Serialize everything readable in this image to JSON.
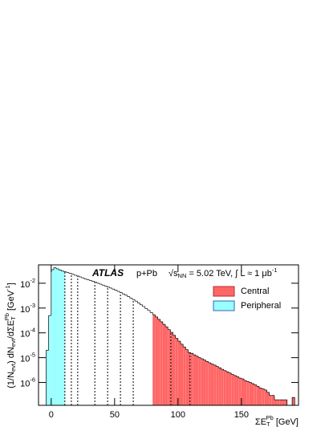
{
  "chart_data": {
    "type": "histogram",
    "annotations": {
      "experiment": "ATLAS",
      "system": "p+Pb",
      "energy": [
        "√s",
        "NN",
        " = 5.02 TeV, ∫ L ≈ 1 μb",
        "-1"
      ]
    },
    "xlabel": [
      "ΣE",
      "T",
      "Pb",
      " [GeV]"
    ],
    "ylabel": [
      "(1/N",
      "evt",
      ") dN",
      "evt",
      "/dΣE",
      "T",
      "Pb",
      " [GeV",
      "-1",
      "]"
    ],
    "xlim": [
      -10,
      195
    ],
    "ylim": [
      1.2e-07,
      0.055
    ],
    "log_y": true,
    "xticks": [
      0,
      50,
      100,
      150
    ],
    "yticks": [
      {
        "value": 1e-06,
        "label": "10-6"
      },
      {
        "value": 1e-05,
        "label": "10-5"
      },
      {
        "value": 0.0001,
        "label": "10-4"
      },
      {
        "value": 0.001,
        "label": "10-3"
      },
      {
        "value": 0.01,
        "label": "10-2"
      }
    ],
    "bins": [
      -4,
      -2,
      0,
      2,
      4,
      6,
      8,
      10,
      12,
      14,
      16,
      18,
      20,
      22,
      24,
      26,
      28,
      30,
      32,
      34,
      36,
      38,
      40,
      42,
      44,
      46,
      48,
      50,
      52,
      54,
      56,
      58,
      60,
      62,
      64,
      66,
      68,
      70,
      72,
      74,
      76,
      78,
      80,
      82,
      84,
      86,
      88,
      90,
      92,
      94,
      96,
      98,
      100,
      102,
      104,
      106,
      108,
      110,
      112,
      114,
      116,
      118,
      120,
      122,
      124,
      126,
      128,
      130,
      132,
      134,
      136,
      138,
      140,
      142,
      144,
      146,
      148,
      150,
      152,
      154,
      156,
      158,
      160,
      162,
      164,
      166,
      168,
      170,
      172,
      174,
      176,
      178,
      180,
      182,
      184,
      186,
      188,
      190,
      192
    ],
    "values": [
      2e-05,
      0.0005,
      0.035,
      0.042,
      0.038,
      0.034,
      0.031,
      0.029,
      0.027,
      0.025,
      0.023,
      0.021,
      0.0195,
      0.018,
      0.0165,
      0.015,
      0.014,
      0.013,
      0.012,
      0.011,
      0.01,
      0.0092,
      0.0084,
      0.0077,
      0.007,
      0.0064,
      0.0058,
      0.0052,
      0.0047,
      0.0042,
      0.0037,
      0.0033,
      0.0029,
      0.0025,
      0.0022,
      0.0019,
      0.0016,
      0.00135,
      0.00115,
      0.00095,
      0.0008,
      0.00066,
      0.00054,
      0.00044,
      0.00035,
      0.00028,
      0.00022,
      0.000175,
      0.000135,
      0.000105,
      8e-05,
      6e-05,
      4.6e-05,
      3.5e-05,
      2.7e-05,
      2.1e-05,
      1.6e-05,
      1.5e-05,
      1.3e-05,
      1.15e-05,
      1e-05,
      9e-06,
      8e-06,
      7e-06,
      6.2e-06,
      5.5e-06,
      5e-06,
      4.4e-06,
      3.9e-06,
      3.4e-06,
      3e-06,
      2.7e-06,
      2.4e-06,
      2.1e-06,
      1.9e-06,
      1.7e-06,
      1.5e-06,
      1.4e-06,
      1.2e-06,
      1.1e-06,
      1e-06,
      9e-07,
      8e-07,
      7e-07,
      6e-07,
      5.5e-07,
      5e-07,
      4e-07,
      3e-07,
      3e-07,
      2e-07,
      2e-07,
      2e-07,
      2e-07,
      2e-07,
      null,
      null,
      2.5e-07
    ],
    "regions": [
      {
        "name": "Central",
        "color": "#ff6666",
        "border": "#b03030",
        "from": 80
      },
      {
        "name": "Peripheral",
        "color": "#99ffff",
        "border": "#3060c0",
        "to": 10.8
      }
    ],
    "dividers": [
      10.8,
      15.9,
      20.9,
      34.4,
      44.5,
      54.6,
      64.7,
      94.3,
      109.5
    ]
  }
}
